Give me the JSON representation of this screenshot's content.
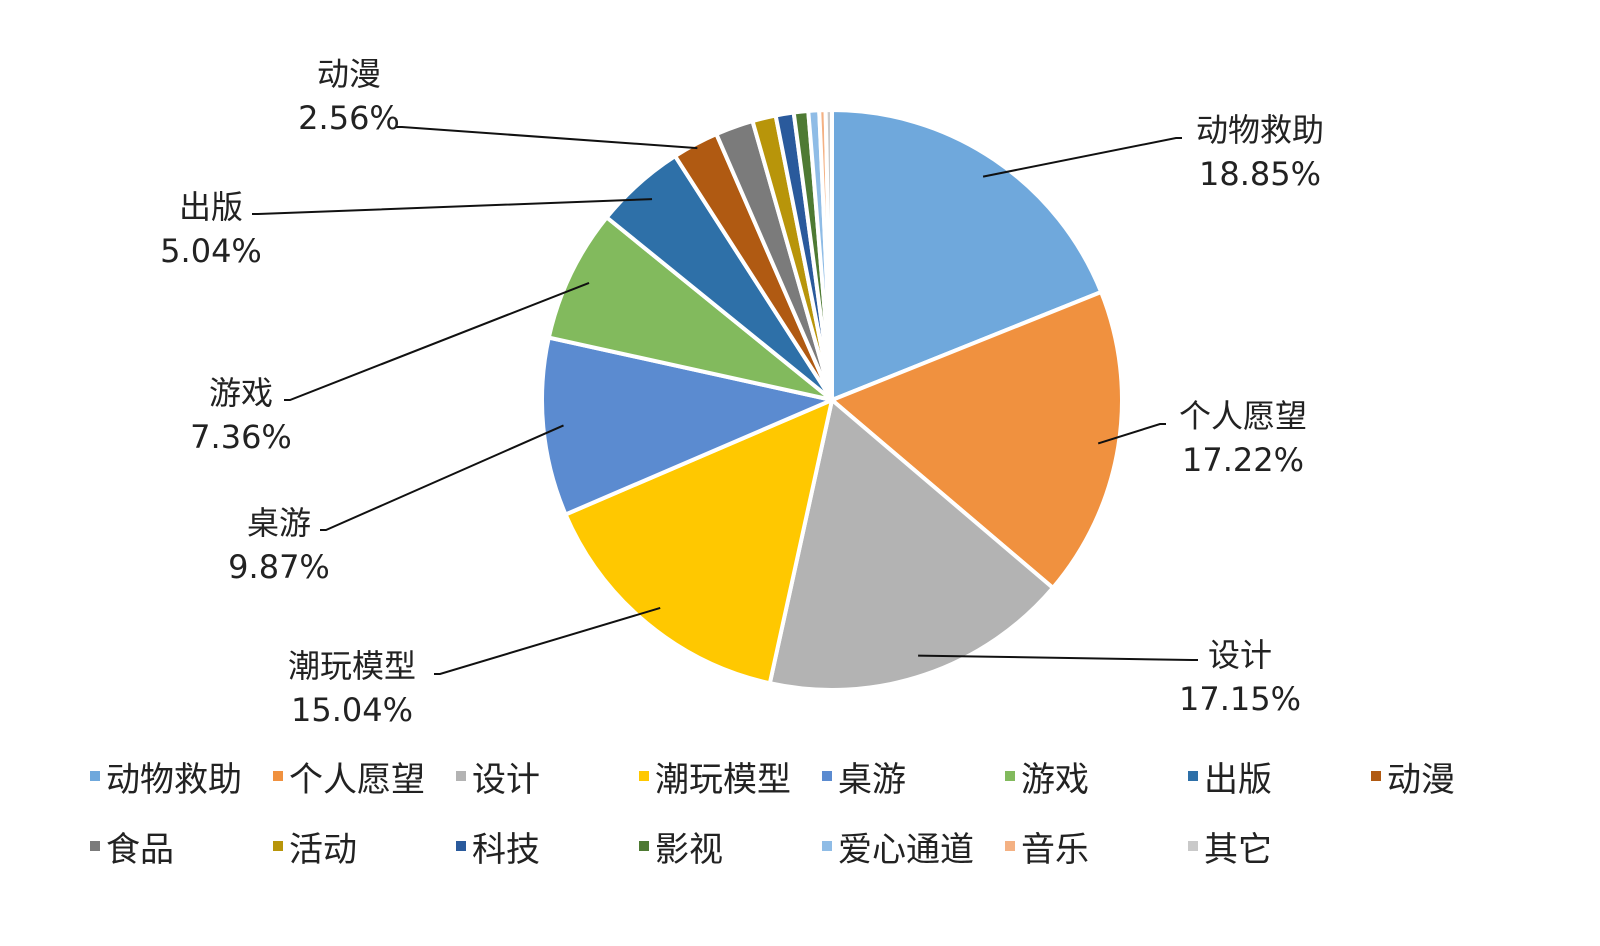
{
  "chart_data": {
    "type": "pie",
    "title": "",
    "start_angle_deg": 0,
    "direction": "clockwise",
    "legend_position": "bottom",
    "slices": [
      {
        "label": "动物救助",
        "value": 18.85,
        "value_text": "18.85%",
        "color": "#6FA8DC",
        "labeled": true
      },
      {
        "label": "个人愿望",
        "value": 17.22,
        "value_text": "17.22%",
        "color": "#F0913F",
        "labeled": true
      },
      {
        "label": "设计",
        "value": 17.15,
        "value_text": "17.15%",
        "color": "#B3B3B3",
        "labeled": true
      },
      {
        "label": "潮玩模型",
        "value": 15.04,
        "value_text": "15.04%",
        "color": "#FFC800",
        "labeled": true
      },
      {
        "label": "桌游",
        "value": 9.87,
        "value_text": "9.87%",
        "color": "#5B8BD0",
        "labeled": true
      },
      {
        "label": "游戏",
        "value": 7.36,
        "value_text": "7.36%",
        "color": "#82BA5D",
        "labeled": true
      },
      {
        "label": "出版",
        "value": 5.04,
        "value_text": "5.04%",
        "color": "#2E70A8",
        "labeled": true
      },
      {
        "label": "动漫",
        "value": 2.56,
        "value_text": "2.56%",
        "color": "#B05A12",
        "labeled": true
      },
      {
        "label": "食品",
        "value": 2.1,
        "color": "#7B7B7B",
        "labeled": false
      },
      {
        "label": "活动",
        "value": 1.3,
        "color": "#B8950A",
        "labeled": false
      },
      {
        "label": "科技",
        "value": 1.0,
        "color": "#2A5A9C",
        "labeled": false
      },
      {
        "label": "影视",
        "value": 0.8,
        "color": "#4E7A33",
        "labeled": false
      },
      {
        "label": "爱心通道",
        "value": 0.6,
        "color": "#8FBCE6",
        "labeled": false
      },
      {
        "label": "音乐",
        "value": 0.35,
        "color": "#F4B183",
        "labeled": false
      },
      {
        "label": "其它",
        "value": 0.35,
        "color": "#C9C9C9",
        "labeled": false
      }
    ]
  }
}
